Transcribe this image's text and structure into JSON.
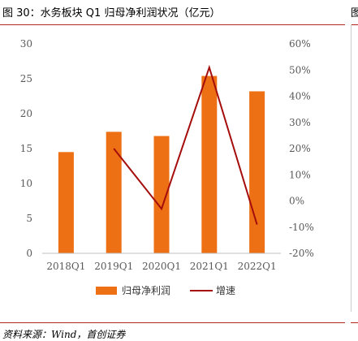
{
  "header": {
    "title": "图 30：水务板块 Q1 归母净利润状况（亿元）",
    "right_title_fragment": "图"
  },
  "footer": {
    "source": "资料来源：Wind，首创证券"
  },
  "chart_data": {
    "type": "bar",
    "title": "图 30：水务板块 Q1 归母净利润状况（亿元）",
    "categories": [
      "2018Q1",
      "2019Q1",
      "2020Q1",
      "2021Q1",
      "2022Q1"
    ],
    "series": [
      {
        "name": "归母净利润",
        "type": "bar",
        "axis": "left",
        "color": "#ed7014",
        "values": [
          14.5,
          17.4,
          16.8,
          25.4,
          23.2
        ]
      },
      {
        "name": "增速",
        "type": "line",
        "axis": "right",
        "color": "#a50d0d",
        "values": [
          null,
          20.0,
          -3.0,
          51.0,
          -9.0
        ]
      }
    ],
    "y_left": {
      "lim": [
        0,
        30
      ],
      "ticks": [
        0,
        5,
        10,
        15,
        20,
        25,
        30
      ]
    },
    "y_right": {
      "lim": [
        -20,
        60
      ],
      "ticks": [
        -20,
        -10,
        0,
        10,
        20,
        30,
        40,
        50,
        60
      ],
      "tick_labels": [
        "-20%",
        "-10%",
        "0%",
        "10%",
        "20%",
        "30%",
        "40%",
        "50%",
        "60%"
      ]
    },
    "grid": false,
    "legend": "bottom-center"
  }
}
